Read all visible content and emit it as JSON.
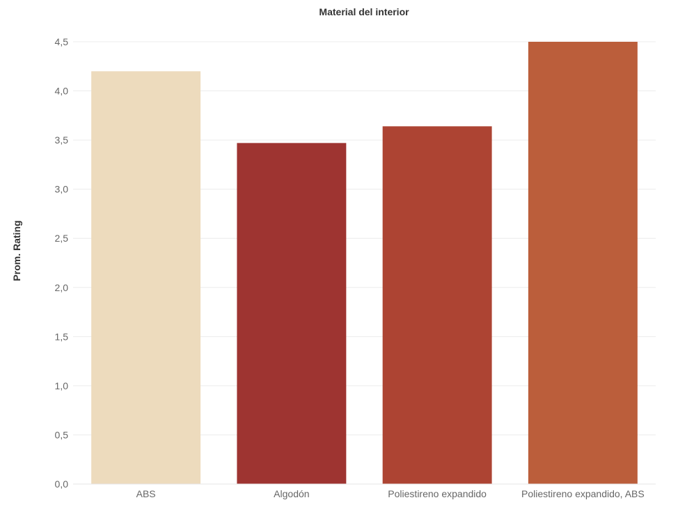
{
  "chart_data": {
    "type": "bar",
    "title": "Material del interior",
    "ylabel": "Prom. Rating",
    "xlabel": "",
    "categories": [
      "ABS",
      "Algodón",
      "Poliestireno expandido",
      "Poliestireno expandido, ABS"
    ],
    "values": [
      4.2,
      3.47,
      3.64,
      4.5
    ],
    "colors": [
      "#eddbbd",
      "#9e3431",
      "#ad4433",
      "#bb5e3b"
    ],
    "ylim": [
      0,
      4.5
    ],
    "yticks": [
      "0,0",
      "0,5",
      "1,0",
      "1,5",
      "2,0",
      "2,5",
      "3,0",
      "3,5",
      "4,0",
      "4,5"
    ],
    "grid": true,
    "legend": "none"
  }
}
